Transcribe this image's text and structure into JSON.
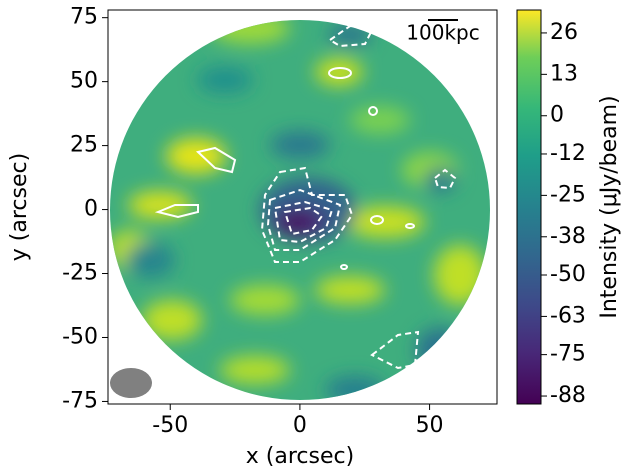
{
  "chart_data": {
    "type": "image",
    "xlabel": "x (arcsec)",
    "ylabel": "y (arcsec)",
    "xlim": [
      -74,
      76
    ],
    "ylim": [
      -76,
      78
    ],
    "xticks": [
      -50,
      0,
      50
    ],
    "yticks": [
      -75,
      -50,
      -25,
      0,
      25,
      50,
      75
    ],
    "colorbar_label": "Intensity (μJy/beam)",
    "clim": [
      -90.5,
      33.2
    ],
    "colorbar_ticks": [
      26,
      13,
      0,
      -12,
      -25,
      -38,
      -50,
      -63,
      -75,
      -88
    ],
    "annotation": "100kpc"
  }
}
